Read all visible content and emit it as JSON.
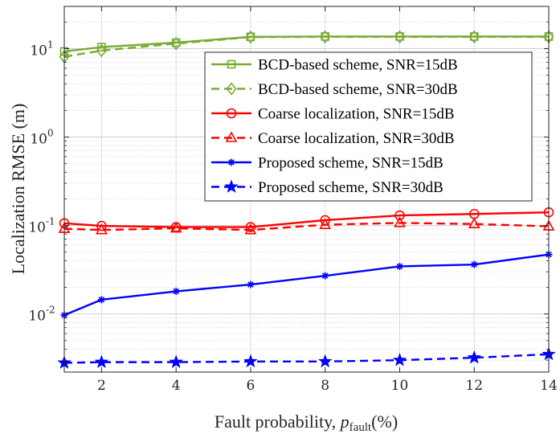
{
  "chart_data": {
    "type": "line",
    "xscale": "linear",
    "yscale": "log",
    "xlabel_prefix": "Fault probability, ",
    "xlabel_var": "p",
    "xlabel_sub": "fault",
    "xlabel_unit": "(%)",
    "ylabel": "Localization RMSE (m)",
    "xlim": [
      1,
      14
    ],
    "ylim": [
      0.0022,
      30
    ],
    "grid": true,
    "xticks": [
      {
        "value": 2,
        "label": "2"
      },
      {
        "value": 4,
        "label": "4"
      },
      {
        "value": 6,
        "label": "6"
      },
      {
        "value": 8,
        "label": "8"
      },
      {
        "value": 10,
        "label": "10"
      },
      {
        "value": 12,
        "label": "12"
      },
      {
        "value": 14,
        "label": "14"
      }
    ],
    "yticks": [
      {
        "value": 0.01,
        "base": "10",
        "exp": "-2"
      },
      {
        "value": 0.1,
        "base": "10",
        "exp": "-1"
      },
      {
        "value": 1,
        "base": "10",
        "exp": "0"
      },
      {
        "value": 10,
        "base": "10",
        "exp": "1"
      }
    ],
    "x": [
      1,
      2,
      4,
      6,
      8,
      10,
      12,
      14
    ],
    "legend_position": "upper-right",
    "series": [
      {
        "name": "BCD-based scheme, SNR=15dB",
        "color": "#77ac30",
        "dash": "solid",
        "marker": "square",
        "values": [
          9.3,
          10.4,
          11.7,
          13.6,
          13.7,
          13.7,
          13.7,
          13.7
        ]
      },
      {
        "name": "BCD-based scheme, SNR=30dB",
        "color": "#77ac30",
        "dash": "dashed",
        "marker": "diamond",
        "values": [
          8.1,
          9.5,
          11.4,
          13.5,
          13.6,
          13.6,
          13.6,
          13.6
        ]
      },
      {
        "name": "Coarse localization, SNR=15dB",
        "color": "#ff0000",
        "dash": "solid",
        "marker": "circle",
        "values": [
          0.106,
          0.099,
          0.096,
          0.096,
          0.115,
          0.13,
          0.135,
          0.141
        ]
      },
      {
        "name": "Coarse localization, SNR=30dB",
        "color": "#ff0000",
        "dash": "dashed",
        "marker": "triangle",
        "values": [
          0.092,
          0.089,
          0.093,
          0.089,
          0.102,
          0.107,
          0.104,
          0.098
        ]
      },
      {
        "name": "Proposed scheme, SNR=15dB",
        "color": "#0000ff",
        "dash": "solid",
        "marker": "asterisk",
        "values": [
          0.0097,
          0.0145,
          0.018,
          0.0215,
          0.027,
          0.0345,
          0.0362,
          0.047
        ]
      },
      {
        "name": "Proposed scheme, SNR=30dB",
        "color": "#0000ff",
        "dash": "dashed",
        "marker": "star",
        "values": [
          0.0028,
          0.00285,
          0.00285,
          0.0029,
          0.0029,
          0.003,
          0.0032,
          0.0035
        ]
      }
    ]
  }
}
